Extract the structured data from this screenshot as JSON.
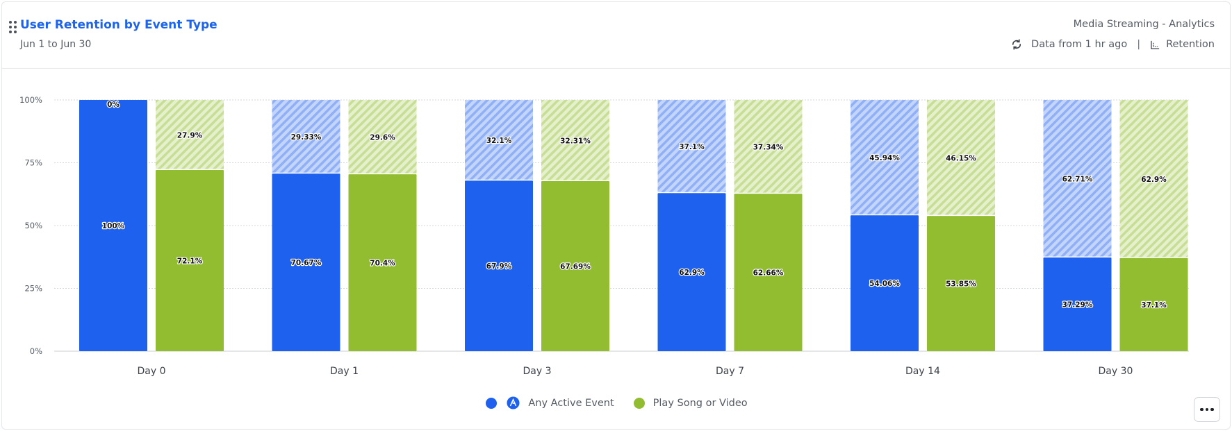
{
  "header": {
    "title": "User Retention by Event Type",
    "date_range": "Jun 1 to Jun 30",
    "source": "Media Streaming - Analytics",
    "freshness": "Data from 1 hr ago",
    "separator": "|",
    "chart_kind": "Retention"
  },
  "legend": [
    {
      "label": "Any Active Event",
      "color": "#1e61ee",
      "icon": "any-event-icon"
    },
    {
      "label": "Play Song or Video",
      "color": "#93bd31"
    }
  ],
  "colors": {
    "blue": "#1e61ee",
    "green": "#93bd31",
    "blue_hatch_bg": "#c4d5fb",
    "blue_hatch_stripe": "#8fb0f6",
    "green_hatch_bg": "#e5f0cd",
    "green_hatch_stripe": "#c8de94"
  },
  "chart_data": {
    "type": "bar",
    "stacked": true,
    "categories": [
      "Day 0",
      "Day 1",
      "Day 3",
      "Day 7",
      "Day 14",
      "Day 30"
    ],
    "y_ticks": [
      "0%",
      "25%",
      "50%",
      "75%",
      "100%"
    ],
    "ylim": [
      0,
      100
    ],
    "grid": true,
    "legend_position": "bottom",
    "series": [
      {
        "name": "Any Active Event",
        "retained": [
          100,
          70.67,
          67.9,
          62.9,
          54.06,
          37.29
        ],
        "retained_labels": [
          "100%",
          "70.67%",
          "67.9%",
          "62.9%",
          "54.06%",
          "37.29%"
        ],
        "dropped": [
          0,
          29.33,
          32.1,
          37.1,
          45.94,
          62.71
        ],
        "dropped_labels": [
          "0%",
          "29.33%",
          "32.1%",
          "37.1%",
          "45.94%",
          "62.71%"
        ]
      },
      {
        "name": "Play Song or Video",
        "retained": [
          72.1,
          70.4,
          67.69,
          62.66,
          53.85,
          37.1
        ],
        "retained_labels": [
          "72.1%",
          "70.4%",
          "67.69%",
          "62.66%",
          "53.85%",
          "37.1%"
        ],
        "dropped": [
          27.9,
          29.6,
          32.31,
          37.34,
          46.15,
          62.9
        ],
        "dropped_labels": [
          "27.9%",
          "29.6%",
          "32.31%",
          "37.34%",
          "46.15%",
          "62.9%"
        ]
      }
    ]
  }
}
